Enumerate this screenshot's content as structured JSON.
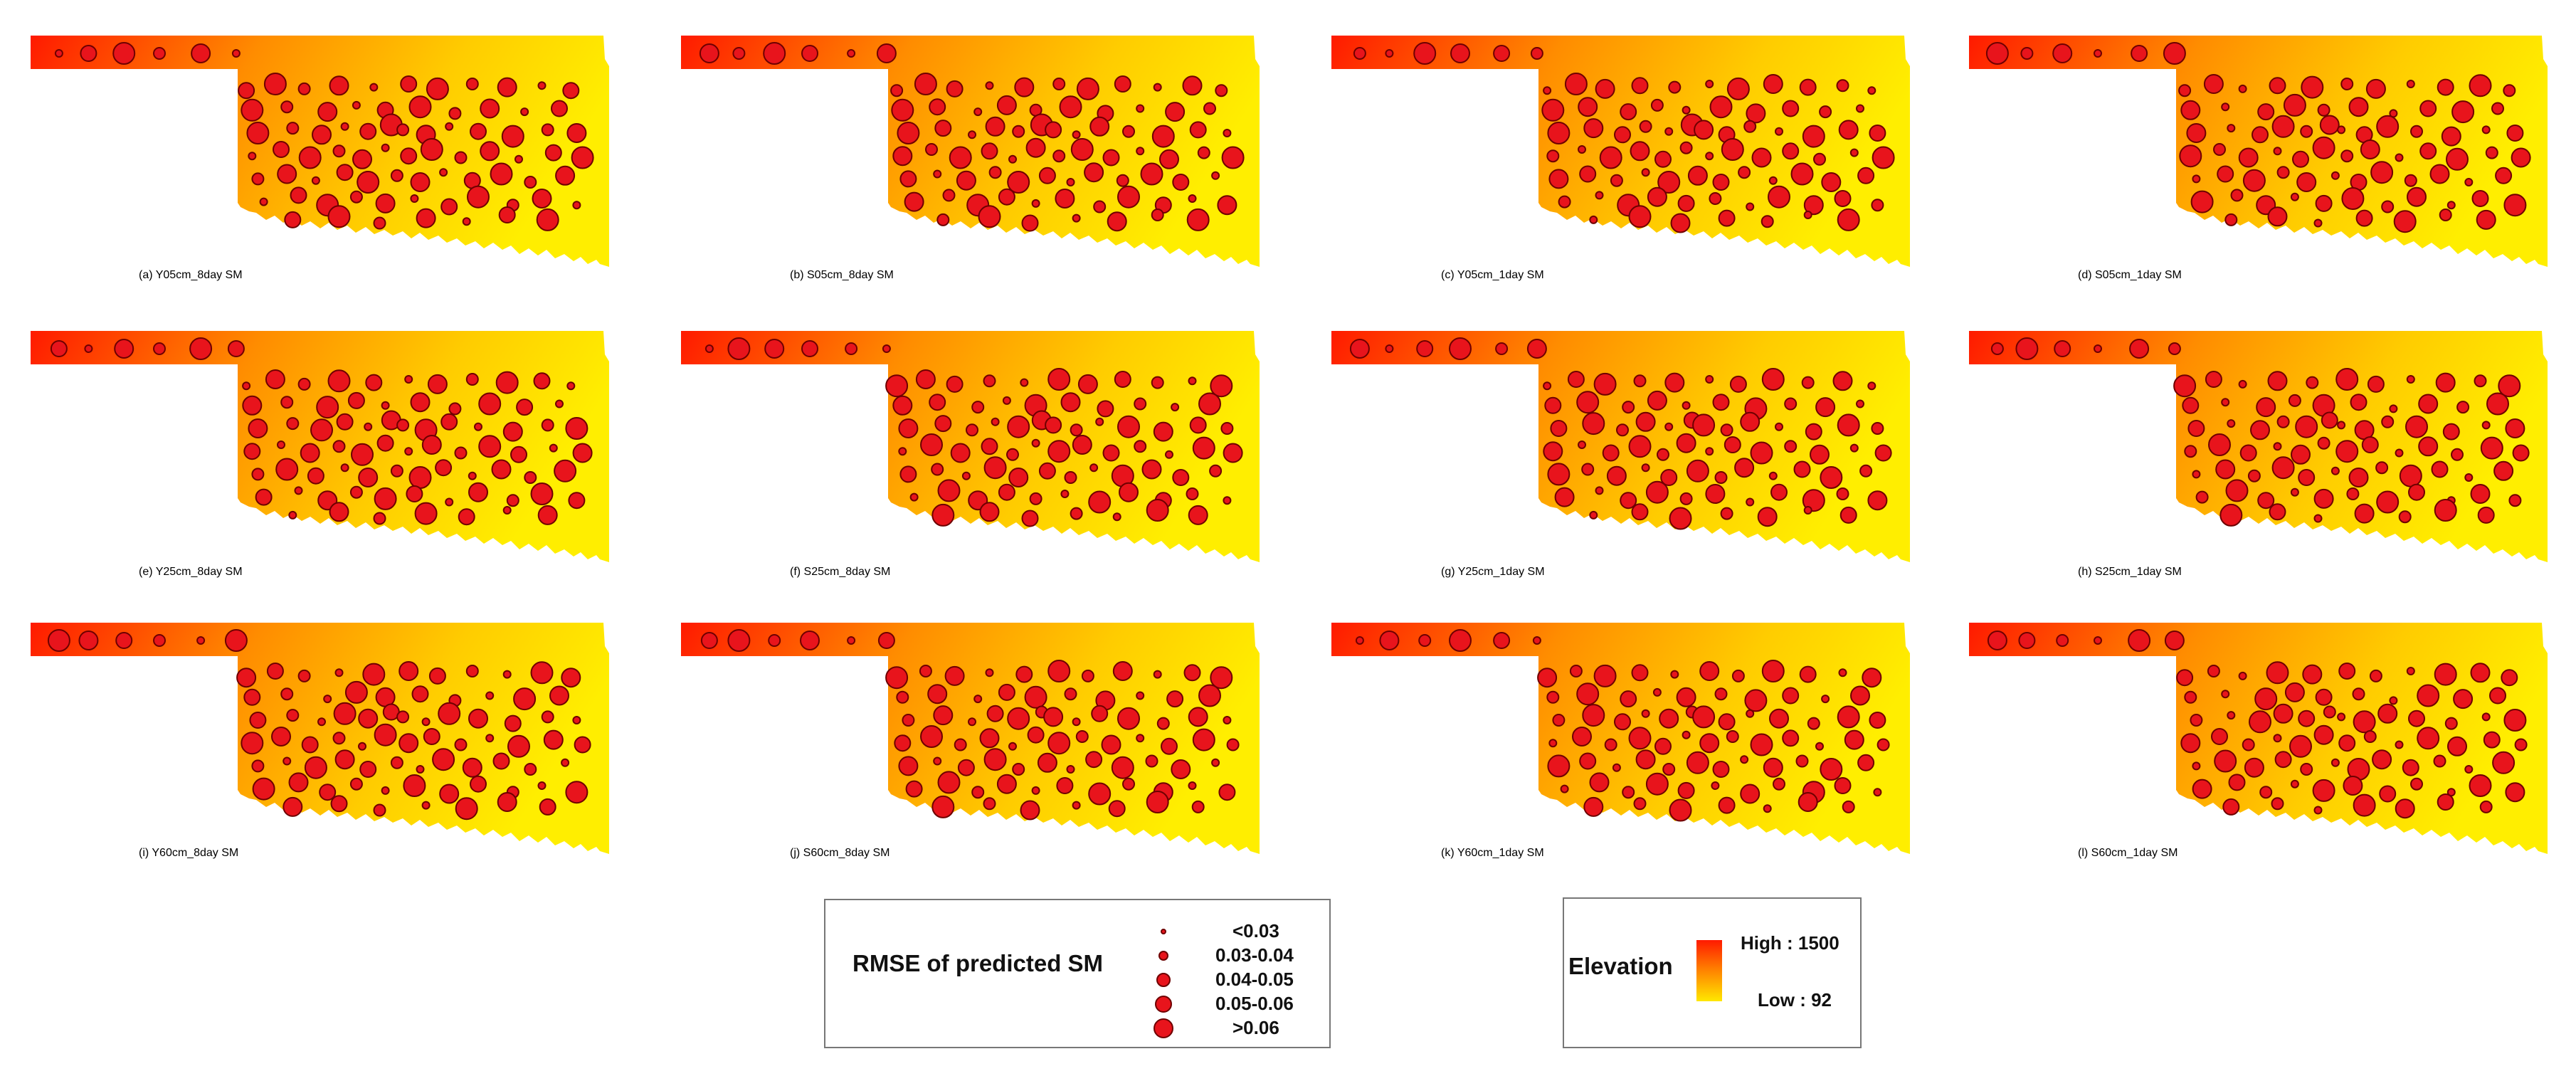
{
  "figure": {
    "panels": [
      {
        "caption": "(a) Y05cm_8day SM"
      },
      {
        "caption": "(b) S05cm_8day SM"
      },
      {
        "caption": "(c) Y05cm_1day SM"
      },
      {
        "caption": "(d) S05cm_1day SM"
      },
      {
        "caption": "(e) Y25cm_8day SM"
      },
      {
        "caption": "(f) S25cm_8day SM"
      },
      {
        "caption": "(g) Y25cm_1day SM"
      },
      {
        "caption": "(h) S25cm_1day SM"
      },
      {
        "caption": "(i) Y60cm_8day SM"
      },
      {
        "caption": "(j) S60cm_8day SM"
      },
      {
        "caption": "(k) Y60cm_1day SM"
      },
      {
        "caption": "(l) S60cm_1day SM"
      }
    ]
  },
  "rmse_legend": {
    "title": "RMSE of predicted SM",
    "classes": [
      "<0.03",
      "0.03-0.04",
      "0.04-0.05",
      "0.05-0.06",
      ">0.06"
    ]
  },
  "elevation_legend": {
    "title": "Elevation",
    "high": "High : 1500",
    "low": "Low : 92"
  },
  "colors": {
    "elevation_high": "#ff1a00",
    "elevation_mid": "#ff8c00",
    "elevation_low": "#ffee00",
    "station_fill": "#e8141c",
    "station_stroke": "#6e0000"
  }
}
